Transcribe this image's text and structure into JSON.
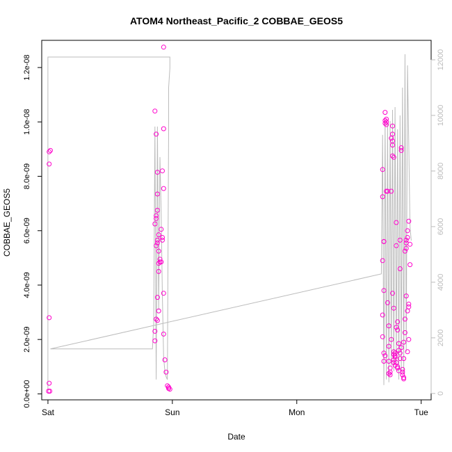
{
  "chart_data": {
    "type": "scatter",
    "title": "ATOM4 Northeast_Pacific_2 COBBAE_GEOS5",
    "xlabel": "Date",
    "ylabel": "COBBAE_GEOS5",
    "x_unit": "days since Sat 00:00",
    "xlim": [
      -0.05,
      3.08
    ],
    "x_ticks": [
      {
        "value": 0,
        "label": "Sat"
      },
      {
        "value": 1,
        "label": "Sun"
      },
      {
        "value": 2,
        "label": "Mon"
      },
      {
        "value": 3,
        "label": "Tue"
      }
    ],
    "ylim": [
      -2.2e-10,
      1.3e-08
    ],
    "y_ticks": [
      {
        "value": 0,
        "label": "0.0e+00"
      },
      {
        "value": 2e-09,
        "label": "2.0e-09"
      },
      {
        "value": 4e-09,
        "label": "4.0e-09"
      },
      {
        "value": 6e-09,
        "label": "6.0e-09"
      },
      {
        "value": 8e-09,
        "label": "8.0e-09"
      },
      {
        "value": 1e-08,
        "label": "1.0e-08"
      },
      {
        "value": 1.2e-08,
        "label": "1.2e-08"
      }
    ],
    "y2lim": [
      -230,
      12700
    ],
    "y2_ticks": [
      {
        "value": 0,
        "label": "0"
      },
      {
        "value": 2000,
        "label": "2000"
      },
      {
        "value": 4000,
        "label": "4000"
      },
      {
        "value": 6000,
        "label": "6000"
      },
      {
        "value": 8000,
        "label": "8000"
      },
      {
        "value": 10000,
        "label": "10000"
      },
      {
        "value": 12000,
        "label": "12000"
      }
    ],
    "grid": false,
    "colors": {
      "points": "#ff00cc",
      "altitude_line": "#bbbbbb",
      "axis": "#000000",
      "secondary_axis": "#bbbbbb"
    },
    "series": [
      {
        "marker": "open-circle",
        "axis": "left",
        "points": [
          [
            0.01,
            8.9e-09
          ],
          [
            0.02,
            8.95e-09
          ],
          [
            0.01,
            8.45e-09
          ],
          [
            0.01,
            2.8e-09
          ],
          [
            0.01,
            3.9e-10
          ],
          [
            0.005,
            1e-10
          ],
          [
            0.015,
            1e-10
          ],
          [
            0.86,
            1.04e-08
          ],
          [
            0.87,
            9.55e-09
          ],
          [
            0.88,
            8.15e-09
          ],
          [
            0.88,
            7.35e-09
          ],
          [
            0.88,
            6.75e-09
          ],
          [
            0.87,
            6.55e-09
          ],
          [
            0.87,
            6.45e-09
          ],
          [
            0.86,
            6.25e-09
          ],
          [
            0.89,
            5.85e-09
          ],
          [
            0.88,
            5.65e-09
          ],
          [
            0.87,
            5.45e-09
          ],
          [
            0.88,
            5.55e-09
          ],
          [
            0.89,
            5.25e-09
          ],
          [
            0.9,
            4.95e-09
          ],
          [
            0.9,
            4.85e-09
          ],
          [
            0.89,
            4.8e-09
          ],
          [
            0.89,
            4.5e-09
          ],
          [
            0.88,
            3.55e-09
          ],
          [
            0.89,
            3.05e-09
          ],
          [
            0.87,
            2.75e-09
          ],
          [
            0.88,
            2.7e-09
          ],
          [
            0.86,
            2.3e-09
          ],
          [
            0.86,
            1.95e-09
          ],
          [
            0.93,
            1.275e-08
          ],
          [
            0.93,
            9.75e-09
          ],
          [
            0.92,
            8.2e-09
          ],
          [
            0.93,
            7.55e-09
          ],
          [
            0.91,
            6.05e-09
          ],
          [
            0.92,
            5.75e-09
          ],
          [
            0.92,
            5.65e-09
          ],
          [
            0.91,
            4.85e-09
          ],
          [
            0.93,
            3.7e-09
          ],
          [
            0.93,
            2.2e-09
          ],
          [
            0.94,
            1.25e-09
          ],
          [
            0.95,
            8e-10
          ],
          [
            0.96,
            3e-10
          ],
          [
            0.97,
            2.5e-10
          ],
          [
            0.97,
            2e-10
          ],
          [
            0.98,
            1.7e-10
          ],
          [
            2.69,
            8.25e-09
          ],
          [
            2.69,
            7.25e-09
          ],
          [
            2.7,
            5.6e-09
          ],
          [
            2.7,
            5.6e-09
          ],
          [
            2.69,
            4.9e-09
          ],
          [
            2.7,
            3.8e-09
          ],
          [
            2.69,
            2.9e-09
          ],
          [
            2.69,
            2.1e-09
          ],
          [
            2.7,
            1.5e-09
          ],
          [
            2.71,
            1.4e-09
          ],
          [
            2.7,
            1.2e-09
          ],
          [
            2.71,
            1.035e-08
          ],
          [
            2.72,
            1.01e-08
          ],
          [
            2.71,
            1.005e-08
          ],
          [
            2.72,
            1e-08
          ],
          [
            2.72,
            9.9e-09
          ],
          [
            2.71,
            9.95e-09
          ],
          [
            2.73,
            7.45e-09
          ],
          [
            2.72,
            7.45e-09
          ],
          [
            2.73,
            3.35e-09
          ],
          [
            2.74,
            2.5e-09
          ],
          [
            2.74,
            1.75e-09
          ],
          [
            2.74,
            1.2e-09
          ],
          [
            2.75,
            9.5e-10
          ],
          [
            2.74,
            7.5e-10
          ],
          [
            2.75,
            7e-10
          ],
          [
            2.75,
            8e-10
          ],
          [
            2.76,
            2e-09
          ],
          [
            2.77,
            9.85e-09
          ],
          [
            2.77,
            9.55e-09
          ],
          [
            2.76,
            9.4e-09
          ],
          [
            2.77,
            9.3e-09
          ],
          [
            2.77,
            9.15e-09
          ],
          [
            2.77,
            8.75e-09
          ],
          [
            2.78,
            8.7e-09
          ],
          [
            2.76,
            7.45e-09
          ],
          [
            2.77,
            3.7e-09
          ],
          [
            2.78,
            3.15e-09
          ],
          [
            2.78,
            1.55e-09
          ],
          [
            2.78,
            1.45e-09
          ],
          [
            2.79,
            1.35e-09
          ],
          [
            2.78,
            1.25e-09
          ],
          [
            2.78,
            1.15e-09
          ],
          [
            2.79,
            1.05e-09
          ],
          [
            2.79,
            1.4e-09
          ],
          [
            2.79,
            1.5e-09
          ],
          [
            2.8,
            6.3e-09
          ],
          [
            2.8,
            5.45e-09
          ],
          [
            2.81,
            2.65e-09
          ],
          [
            2.8,
            2.45e-09
          ],
          [
            2.81,
            2.35e-09
          ],
          [
            2.8,
            1.15e-09
          ],
          [
            2.81,
            1e-09
          ],
          [
            2.81,
            9.5e-10
          ],
          [
            2.82,
            8.5e-10
          ],
          [
            2.82,
            1.85e-09
          ],
          [
            2.82,
            1.6e-09
          ],
          [
            2.83,
            1.5e-09
          ],
          [
            2.83,
            1.3e-09
          ],
          [
            2.83,
            5.65e-09
          ],
          [
            2.83,
            4.6e-09
          ],
          [
            2.84,
            9.05e-09
          ],
          [
            2.84,
            8.95e-09
          ],
          [
            2.84,
            1.7e-09
          ],
          [
            2.85,
            9e-10
          ],
          [
            2.85,
            8e-10
          ],
          [
            2.85,
            7e-10
          ],
          [
            2.86,
            6e-10
          ],
          [
            2.86,
            5.5e-10
          ],
          [
            2.86,
            1.3e-09
          ],
          [
            2.86,
            1.9e-09
          ],
          [
            2.87,
            2.25e-09
          ],
          [
            2.87,
            2.75e-09
          ],
          [
            2.88,
            3.6e-09
          ],
          [
            2.87,
            5.25e-09
          ],
          [
            2.88,
            5.35e-09
          ],
          [
            2.88,
            5.55e-09
          ],
          [
            2.88,
            5.65e-09
          ],
          [
            2.89,
            5.75e-09
          ],
          [
            2.89,
            6e-09
          ],
          [
            2.9,
            6.35e-09
          ],
          [
            2.89,
            3.05e-09
          ],
          [
            2.9,
            3.2e-09
          ],
          [
            2.9,
            3.3e-09
          ],
          [
            2.91,
            4.75e-09
          ],
          [
            2.91,
            5.5e-09
          ],
          [
            2.9,
            2e-09
          ],
          [
            2.89,
            1.55e-09
          ]
        ]
      },
      {
        "marker": "line",
        "axis": "right",
        "points": [
          [
            0.0,
            100
          ],
          [
            0.0,
            12100
          ],
          [
            0.98,
            12100
          ],
          [
            0.98,
            11700
          ],
          [
            0.97,
            11000
          ],
          [
            0.97,
            10200
          ],
          [
            0.97,
            9500
          ],
          [
            0.96,
            500
          ],
          [
            0.95,
            600
          ],
          [
            0.94,
            800
          ],
          [
            0.93,
            1300
          ],
          [
            0.92,
            3500
          ],
          [
            0.91,
            6500
          ],
          [
            0.9,
            8500
          ],
          [
            0.89,
            3000
          ],
          [
            0.88,
            9600
          ],
          [
            0.87,
            500
          ],
          [
            0.86,
            9600
          ],
          [
            0.85,
            2500
          ],
          [
            0.84,
            1600
          ],
          [
            0.02,
            1600
          ],
          [
            2.68,
            4300
          ],
          [
            2.69,
            9300
          ],
          [
            2.7,
            300
          ],
          [
            2.71,
            9800
          ],
          [
            2.72,
            500
          ],
          [
            2.73,
            9700
          ],
          [
            2.74,
            400
          ],
          [
            2.75,
            9800
          ],
          [
            2.76,
            1000
          ],
          [
            2.77,
            10200
          ],
          [
            2.78,
            800
          ],
          [
            2.79,
            10300
          ],
          [
            2.8,
            1100
          ],
          [
            2.81,
            9500
          ],
          [
            2.82,
            500
          ],
          [
            2.83,
            10000
          ],
          [
            2.84,
            800
          ],
          [
            2.85,
            11000
          ],
          [
            2.86,
            700
          ],
          [
            2.87,
            12200
          ],
          [
            2.88,
            1500
          ],
          [
            2.89,
            11800
          ],
          [
            2.9,
            9000
          ],
          [
            2.91,
            6000
          ],
          [
            2.92,
            5500
          ]
        ]
      }
    ]
  }
}
